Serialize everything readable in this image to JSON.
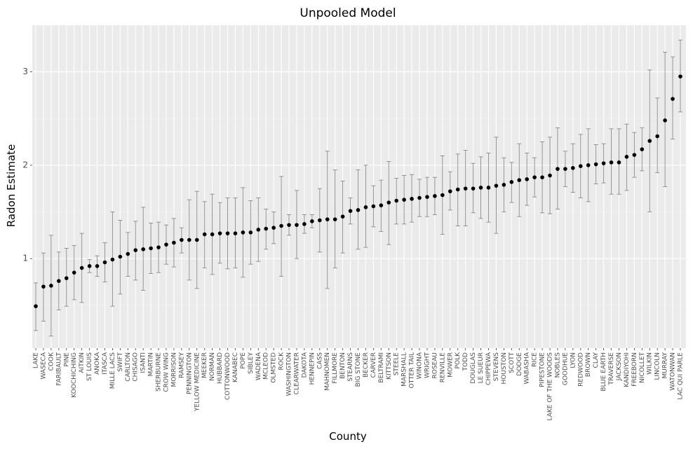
{
  "chart_data": {
    "type": "scatter",
    "title": "Unpooled Model",
    "xlabel": "County",
    "ylabel": "Radon Estimate",
    "ylim": [
      0,
      3.5
    ],
    "yticks": [
      1,
      2,
      3
    ],
    "grid": true,
    "error_bars": true,
    "categories": [
      "LAKE",
      "WASECA",
      "COOK",
      "FARIBAULT",
      "PINE",
      "KOOCHICHING",
      "AITKIN",
      "ST LOUIS",
      "ANOKA",
      "ITASCA",
      "MILLE LACS",
      "SWIFT",
      "CARLTON",
      "CHISAGO",
      "ISANTI",
      "MARTIN",
      "SHERBURNE",
      "CROW WING",
      "MORRISON",
      "RAMSEY",
      "PENNINGTON",
      "YELLOW MEDICINE",
      "MEEKER",
      "NORMAN",
      "HUBBARD",
      "COTTONWOOD",
      "KANABEC",
      "POPE",
      "SIBLEY",
      "WADENA",
      "MCLEOD",
      "OLMSTED",
      "ROCK",
      "WASHINGTON",
      "CLEARWATER",
      "DAKOTA",
      "HENNEPIN",
      "CASS",
      "MAHNOMEN",
      "FILLMORE",
      "BENTON",
      "STEARNS",
      "BIG STONE",
      "BECKER",
      "CARVER",
      "BELTRAMI",
      "KITTSON",
      "STEELE",
      "MARSHALL",
      "OTTER TAIL",
      "WINONA",
      "WRIGHT",
      "ROSEAU",
      "RENVILLE",
      "MOWER",
      "POLK",
      "TODD",
      "DOUGLAS",
      "LE SUEUR",
      "CHIPPEWA",
      "STEVENS",
      "HOUSTON",
      "SCOTT",
      "DODGE",
      "WABASHA",
      "RICE",
      "PIPESTONE",
      "LAKE OF THE WOODS",
      "NOBLES",
      "GOODHUE",
      "LYON",
      "REDWOOD",
      "BROWN",
      "CLAY",
      "BLUE EARTH",
      "TRAVERSE",
      "JACKSON",
      "KANDIYOHI",
      "FREEBORN",
      "NICOLLET",
      "WILKIN",
      "LINCOLN",
      "MURRAY",
      "WATONWAN",
      "LAC QUI PARLE"
    ],
    "values": [
      0.49,
      0.7,
      0.71,
      0.76,
      0.79,
      0.85,
      0.9,
      0.92,
      0.92,
      0.96,
      0.99,
      1.02,
      1.05,
      1.09,
      1.1,
      1.11,
      1.12,
      1.15,
      1.17,
      1.2,
      1.2,
      1.2,
      1.26,
      1.26,
      1.27,
      1.27,
      1.27,
      1.28,
      1.28,
      1.31,
      1.32,
      1.33,
      1.35,
      1.36,
      1.36,
      1.37,
      1.4,
      1.41,
      1.42,
      1.42,
      1.45,
      1.51,
      1.52,
      1.55,
      1.56,
      1.57,
      1.6,
      1.62,
      1.63,
      1.64,
      1.65,
      1.66,
      1.67,
      1.68,
      1.72,
      1.74,
      1.75,
      1.75,
      1.76,
      1.76,
      1.78,
      1.79,
      1.82,
      1.84,
      1.85,
      1.87,
      1.87,
      1.89,
      1.96,
      1.96,
      1.97,
      1.99,
      2.0,
      2.01,
      2.02,
      2.03,
      2.03,
      2.09,
      2.11,
      2.17,
      2.26,
      2.31,
      2.48,
      2.71,
      2.95
    ],
    "lower": [
      0.23,
      0.33,
      0.17,
      0.45,
      0.49,
      0.56,
      0.53,
      0.85,
      0.81,
      0.75,
      0.49,
      0.62,
      0.81,
      0.77,
      0.66,
      0.84,
      0.85,
      0.94,
      0.91,
      1.06,
      0.77,
      0.68,
      0.9,
      0.83,
      0.95,
      0.89,
      0.9,
      0.8,
      0.94,
      0.97,
      1.1,
      1.16,
      0.81,
      1.25,
      1.0,
      1.27,
      1.33,
      1.07,
      0.68,
      0.9,
      1.06,
      1.37,
      1.1,
      1.12,
      1.34,
      1.29,
      1.15,
      1.37,
      1.37,
      1.39,
      1.45,
      1.45,
      1.47,
      1.26,
      1.52,
      1.35,
      1.35,
      1.49,
      1.43,
      1.39,
      1.27,
      1.5,
      1.6,
      1.45,
      1.57,
      1.66,
      1.49,
      1.48,
      1.53,
      1.77,
      1.71,
      1.65,
      1.61,
      1.8,
      1.81,
      1.69,
      1.69,
      1.73,
      1.87,
      1.94,
      1.5,
      1.92,
      1.77,
      2.28,
      2.57
    ],
    "upper": [
      0.74,
      1.06,
      1.25,
      1.07,
      1.11,
      1.14,
      1.27,
      0.99,
      1.03,
      1.17,
      1.5,
      1.41,
      1.28,
      1.4,
      1.55,
      1.38,
      1.39,
      1.36,
      1.43,
      1.33,
      1.63,
      1.72,
      1.61,
      1.69,
      1.6,
      1.65,
      1.65,
      1.76,
      1.62,
      1.65,
      1.53,
      1.5,
      1.88,
      1.47,
      1.73,
      1.47,
      1.47,
      1.75,
      2.15,
      1.95,
      1.83,
      1.65,
      1.95,
      2.0,
      1.78,
      1.84,
      2.04,
      1.86,
      1.89,
      1.9,
      1.85,
      1.87,
      1.87,
      2.1,
      1.93,
      2.12,
      2.16,
      2.02,
      2.09,
      2.13,
      2.3,
      2.08,
      2.03,
      2.23,
      2.13,
      2.08,
      2.25,
      2.3,
      2.4,
      2.15,
      2.23,
      2.33,
      2.39,
      2.22,
      2.23,
      2.39,
      2.39,
      2.44,
      2.35,
      2.4,
      3.02,
      2.72,
      3.21,
      3.16,
      3.34
    ]
  }
}
